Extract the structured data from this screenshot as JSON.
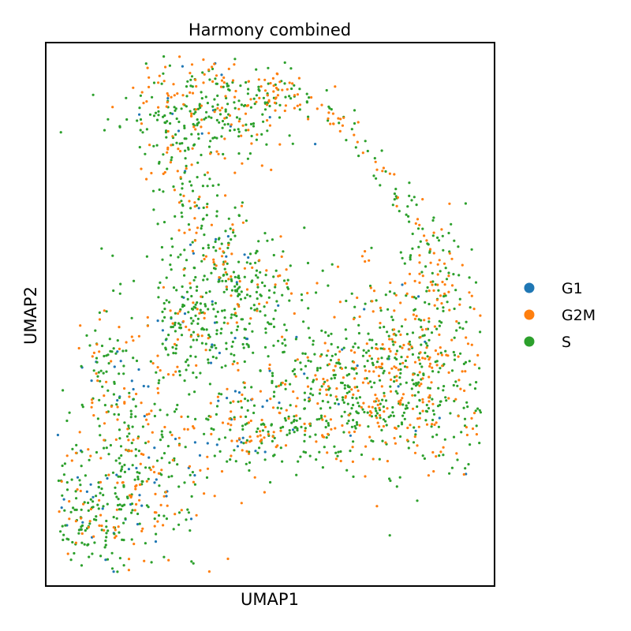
{
  "chart_data": {
    "type": "scatter",
    "title": "Harmony combined",
    "xlabel": "UMAP1",
    "ylabel": "UMAP2",
    "ticks": false,
    "grid": false,
    "legend_position": "right",
    "categories": [
      "G1",
      "G2M",
      "S"
    ],
    "colors": {
      "G1": "#1f77b4",
      "G2M": "#ff7f0e",
      "S": "#2ca02c"
    },
    "series": [
      {
        "name": "G1",
        "color": "#1f77b4"
      },
      {
        "name": "G2M",
        "color": "#ff7f0e"
      },
      {
        "name": "S",
        "color": "#2ca02c"
      }
    ]
  }
}
